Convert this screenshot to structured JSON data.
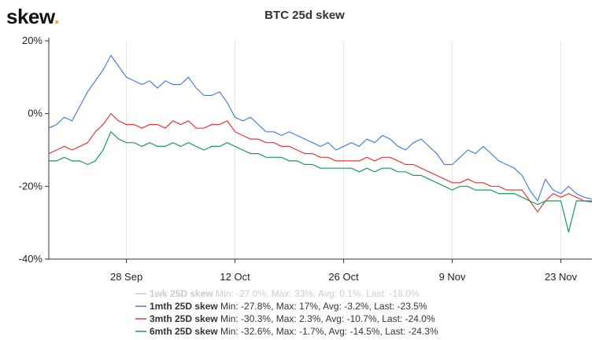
{
  "logo": {
    "text": "skew",
    "dot": "."
  },
  "chart_data": {
    "type": "line",
    "title": "BTC 25d skew",
    "xlabel": "",
    "ylabel": "",
    "x_start": "2020-09-18",
    "x_end": "2020-11-27",
    "x_ticks": [
      {
        "date": "2020-09-28",
        "label": "28 Sep"
      },
      {
        "date": "2020-10-12",
        "label": "12 Oct"
      },
      {
        "date": "2020-10-26",
        "label": "26 Oct"
      },
      {
        "date": "2020-11-09",
        "label": "9 Nov"
      },
      {
        "date": "2020-11-23",
        "label": "23 Nov"
      }
    ],
    "ylim": [
      -40,
      20
    ],
    "y_ticks": [
      {
        "value": 20,
        "label": "20%"
      },
      {
        "value": 0,
        "label": "0%"
      },
      {
        "value": -20,
        "label": "-20%"
      },
      {
        "value": -40,
        "label": "-40%"
      }
    ],
    "grid": "vertical",
    "legend_position": "bottom",
    "series": [
      {
        "name": "1wk 25D skew",
        "stats": "Min: -27.0%, Max: 33%, Avg: 0.1%, Last: -18.0%",
        "color": "#cccccc",
        "hidden": true,
        "values": []
      },
      {
        "name": "1mth 25D skew",
        "stats": "Min: -27.8%, Max: 17%, Avg: -3.2%, Last: -23.5%",
        "color": "#4a7fe0",
        "hidden": false,
        "values": [
          [
            "2020-09-18",
            -4
          ],
          [
            "2020-09-19",
            -3
          ],
          [
            "2020-09-20",
            -1
          ],
          [
            "2020-09-21",
            -2
          ],
          [
            "2020-09-22",
            2
          ],
          [
            "2020-09-23",
            6
          ],
          [
            "2020-09-24",
            9
          ],
          [
            "2020-09-25",
            12
          ],
          [
            "2020-09-26",
            16
          ],
          [
            "2020-09-27",
            13
          ],
          [
            "2020-09-28",
            10
          ],
          [
            "2020-09-29",
            9
          ],
          [
            "2020-09-30",
            8
          ],
          [
            "2020-10-01",
            9
          ],
          [
            "2020-10-02",
            7
          ],
          [
            "2020-10-03",
            9
          ],
          [
            "2020-10-04",
            8
          ],
          [
            "2020-10-05",
            8
          ],
          [
            "2020-10-06",
            10
          ],
          [
            "2020-10-07",
            7
          ],
          [
            "2020-10-08",
            5
          ],
          [
            "2020-10-09",
            5
          ],
          [
            "2020-10-10",
            6
          ],
          [
            "2020-10-11",
            3
          ],
          [
            "2020-10-12",
            -1
          ],
          [
            "2020-10-13",
            -2
          ],
          [
            "2020-10-14",
            -1
          ],
          [
            "2020-10-15",
            -3
          ],
          [
            "2020-10-16",
            -5
          ],
          [
            "2020-10-17",
            -5
          ],
          [
            "2020-10-18",
            -6
          ],
          [
            "2020-10-19",
            -5
          ],
          [
            "2020-10-20",
            -6
          ],
          [
            "2020-10-21",
            -7
          ],
          [
            "2020-10-22",
            -8
          ],
          [
            "2020-10-23",
            -9
          ],
          [
            "2020-10-24",
            -8
          ],
          [
            "2020-10-25",
            -10
          ],
          [
            "2020-10-26",
            -9
          ],
          [
            "2020-10-27",
            -8
          ],
          [
            "2020-10-28",
            -9
          ],
          [
            "2020-10-29",
            -7
          ],
          [
            "2020-10-30",
            -8
          ],
          [
            "2020-10-31",
            -6
          ],
          [
            "2020-11-01",
            -7
          ],
          [
            "2020-11-02",
            -9
          ],
          [
            "2020-11-03",
            -10
          ],
          [
            "2020-11-04",
            -8
          ],
          [
            "2020-11-05",
            -7
          ],
          [
            "2020-11-06",
            -9
          ],
          [
            "2020-11-07",
            -11
          ],
          [
            "2020-11-08",
            -14
          ],
          [
            "2020-11-09",
            -14
          ],
          [
            "2020-11-10",
            -12
          ],
          [
            "2020-11-11",
            -10
          ],
          [
            "2020-11-12",
            -11
          ],
          [
            "2020-11-13",
            -9
          ],
          [
            "2020-11-14",
            -11
          ],
          [
            "2020-11-15",
            -13
          ],
          [
            "2020-11-16",
            -14
          ],
          [
            "2020-11-17",
            -15
          ],
          [
            "2020-11-18",
            -17
          ],
          [
            "2020-11-19",
            -21
          ],
          [
            "2020-11-20",
            -24
          ],
          [
            "2020-11-21",
            -18
          ],
          [
            "2020-11-22",
            -21
          ],
          [
            "2020-11-23",
            -22
          ],
          [
            "2020-11-24",
            -20
          ],
          [
            "2020-11-25",
            -22
          ],
          [
            "2020-11-26",
            -23
          ],
          [
            "2020-11-27",
            -23.5
          ]
        ]
      },
      {
        "name": "3mth 25D skew",
        "stats": "Min: -30.3%, Max: 2.3%, Avg: -10.7%, Last: -24.0%",
        "color": "#e8393a",
        "hidden": false,
        "values": [
          [
            "2020-09-18",
            -11
          ],
          [
            "2020-09-19",
            -10
          ],
          [
            "2020-09-20",
            -9
          ],
          [
            "2020-09-21",
            -10
          ],
          [
            "2020-09-22",
            -9
          ],
          [
            "2020-09-23",
            -8
          ],
          [
            "2020-09-24",
            -5
          ],
          [
            "2020-09-25",
            -3
          ],
          [
            "2020-09-26",
            0
          ],
          [
            "2020-09-27",
            -2
          ],
          [
            "2020-09-28",
            -3
          ],
          [
            "2020-09-29",
            -3
          ],
          [
            "2020-09-30",
            -4
          ],
          [
            "2020-10-01",
            -3
          ],
          [
            "2020-10-02",
            -3
          ],
          [
            "2020-10-03",
            -4
          ],
          [
            "2020-10-04",
            -2
          ],
          [
            "2020-10-05",
            -3
          ],
          [
            "2020-10-06",
            -2
          ],
          [
            "2020-10-07",
            -4
          ],
          [
            "2020-10-08",
            -4
          ],
          [
            "2020-10-09",
            -3
          ],
          [
            "2020-10-10",
            -3
          ],
          [
            "2020-10-11",
            -2
          ],
          [
            "2020-10-12",
            -5
          ],
          [
            "2020-10-13",
            -6
          ],
          [
            "2020-10-14",
            -7
          ],
          [
            "2020-10-15",
            -7
          ],
          [
            "2020-10-16",
            -8
          ],
          [
            "2020-10-17",
            -8
          ],
          [
            "2020-10-18",
            -9
          ],
          [
            "2020-10-19",
            -9
          ],
          [
            "2020-10-20",
            -10
          ],
          [
            "2020-10-21",
            -11
          ],
          [
            "2020-10-22",
            -11
          ],
          [
            "2020-10-23",
            -12
          ],
          [
            "2020-10-24",
            -12
          ],
          [
            "2020-10-25",
            -13
          ],
          [
            "2020-10-26",
            -13
          ],
          [
            "2020-10-27",
            -13
          ],
          [
            "2020-10-28",
            -13
          ],
          [
            "2020-10-29",
            -12
          ],
          [
            "2020-10-30",
            -13
          ],
          [
            "2020-10-31",
            -12
          ],
          [
            "2020-11-01",
            -12
          ],
          [
            "2020-11-02",
            -13
          ],
          [
            "2020-11-03",
            -14
          ],
          [
            "2020-11-04",
            -14
          ],
          [
            "2020-11-05",
            -15
          ],
          [
            "2020-11-06",
            -16
          ],
          [
            "2020-11-07",
            -17
          ],
          [
            "2020-11-08",
            -18
          ],
          [
            "2020-11-09",
            -19
          ],
          [
            "2020-11-10",
            -19
          ],
          [
            "2020-11-11",
            -18
          ],
          [
            "2020-11-12",
            -19
          ],
          [
            "2020-11-13",
            -19
          ],
          [
            "2020-11-14",
            -20
          ],
          [
            "2020-11-15",
            -20
          ],
          [
            "2020-11-16",
            -21
          ],
          [
            "2020-11-17",
            -21
          ],
          [
            "2020-11-18",
            -21
          ],
          [
            "2020-11-19",
            -24
          ],
          [
            "2020-11-20",
            -27
          ],
          [
            "2020-11-21",
            -24
          ],
          [
            "2020-11-22",
            -22
          ],
          [
            "2020-11-23",
            -23
          ],
          [
            "2020-11-24",
            -22
          ],
          [
            "2020-11-25",
            -23
          ],
          [
            "2020-11-26",
            -24
          ],
          [
            "2020-11-27",
            -24
          ]
        ]
      },
      {
        "name": "6mth 25D skew",
        "stats": "Min: -32.6%, Max: -1.7%, Avg: -14.5%, Last: -24.3%",
        "color": "#1e9c4f",
        "hidden": false,
        "values": [
          [
            "2020-09-18",
            -13
          ],
          [
            "2020-09-19",
            -13
          ],
          [
            "2020-09-20",
            -12
          ],
          [
            "2020-09-21",
            -13
          ],
          [
            "2020-09-22",
            -13
          ],
          [
            "2020-09-23",
            -14
          ],
          [
            "2020-09-24",
            -13
          ],
          [
            "2020-09-25",
            -10
          ],
          [
            "2020-09-26",
            -5
          ],
          [
            "2020-09-27",
            -7
          ],
          [
            "2020-09-28",
            -8
          ],
          [
            "2020-09-29",
            -8
          ],
          [
            "2020-09-30",
            -9
          ],
          [
            "2020-10-01",
            -8
          ],
          [
            "2020-10-02",
            -9
          ],
          [
            "2020-10-03",
            -9
          ],
          [
            "2020-10-04",
            -8
          ],
          [
            "2020-10-05",
            -9
          ],
          [
            "2020-10-06",
            -8
          ],
          [
            "2020-10-07",
            -9
          ],
          [
            "2020-10-08",
            -10
          ],
          [
            "2020-10-09",
            -9
          ],
          [
            "2020-10-10",
            -9
          ],
          [
            "2020-10-11",
            -8
          ],
          [
            "2020-10-12",
            -9
          ],
          [
            "2020-10-13",
            -10
          ],
          [
            "2020-10-14",
            -11
          ],
          [
            "2020-10-15",
            -11
          ],
          [
            "2020-10-16",
            -12
          ],
          [
            "2020-10-17",
            -12
          ],
          [
            "2020-10-18",
            -12
          ],
          [
            "2020-10-19",
            -13
          ],
          [
            "2020-10-20",
            -13
          ],
          [
            "2020-10-21",
            -14
          ],
          [
            "2020-10-22",
            -14
          ],
          [
            "2020-10-23",
            -15
          ],
          [
            "2020-10-24",
            -15
          ],
          [
            "2020-10-25",
            -15
          ],
          [
            "2020-10-26",
            -15
          ],
          [
            "2020-10-27",
            -15
          ],
          [
            "2020-10-28",
            -16
          ],
          [
            "2020-10-29",
            -15
          ],
          [
            "2020-10-30",
            -16
          ],
          [
            "2020-10-31",
            -15
          ],
          [
            "2020-11-01",
            -15
          ],
          [
            "2020-11-02",
            -16
          ],
          [
            "2020-11-03",
            -16
          ],
          [
            "2020-11-04",
            -17
          ],
          [
            "2020-11-05",
            -17
          ],
          [
            "2020-11-06",
            -18
          ],
          [
            "2020-11-07",
            -19
          ],
          [
            "2020-11-08",
            -20
          ],
          [
            "2020-11-09",
            -21
          ],
          [
            "2020-11-10",
            -20
          ],
          [
            "2020-11-11",
            -20
          ],
          [
            "2020-11-12",
            -21
          ],
          [
            "2020-11-13",
            -21
          ],
          [
            "2020-11-14",
            -21
          ],
          [
            "2020-11-15",
            -22
          ],
          [
            "2020-11-16",
            -22
          ],
          [
            "2020-11-17",
            -22
          ],
          [
            "2020-11-18",
            -23
          ],
          [
            "2020-11-19",
            -24
          ],
          [
            "2020-11-20",
            -25
          ],
          [
            "2020-11-21",
            -24
          ],
          [
            "2020-11-22",
            -24
          ],
          [
            "2020-11-23",
            -24
          ],
          [
            "2020-11-24",
            -32.6
          ],
          [
            "2020-11-25",
            -24
          ],
          [
            "2020-11-26",
            -24
          ],
          [
            "2020-11-27",
            -24.3
          ]
        ]
      }
    ]
  }
}
